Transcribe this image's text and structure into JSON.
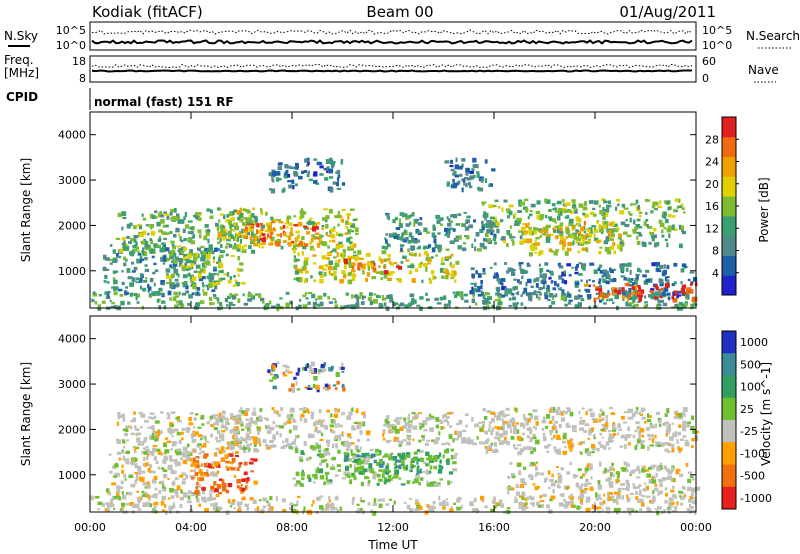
{
  "header": {
    "site": "Kodiak (fitACF)",
    "beam": "Beam 00",
    "date": "01/Aug/2011"
  },
  "summary": {
    "nsky_label": "N.Sky",
    "nsearch_label": "N.Search",
    "freq_label_1": "Freq.",
    "freq_label_2": "[MHz]",
    "nave_label": "Nave",
    "cpid_label": "CPID",
    "cpid_text": "normal (fast) 151 RF",
    "noise_ticks_left": [
      "10^5",
      "10^0"
    ],
    "noise_ticks_right": [
      "10^5",
      "10^0"
    ],
    "freq_ticks": [
      "18",
      "8"
    ],
    "nave_ticks": [
      "60",
      "0"
    ]
  },
  "colors": {
    "power_scale": [
      "#2222cc",
      "#1f5faa",
      "#4f8a8a",
      "#3aa070",
      "#7dbb30",
      "#e0d000",
      "#f0a000",
      "#f06a10",
      "#e02020"
    ],
    "velocity_scale": [
      "#2030c0",
      "#3d8a9a",
      "#2fa060",
      "#6ec030",
      "#c0c0bc",
      "#ffa000",
      "#f07010",
      "#e82020"
    ]
  },
  "chart_data": [
    {
      "type": "heatmap",
      "panel": "power",
      "ylabel": "Slant Range [km]",
      "xlabel": "Time UT",
      "x_ticks": [
        "00:00",
        "04:00",
        "08:00",
        "12:00",
        "16:00",
        "20:00",
        "00:00"
      ],
      "x_range_hours": [
        0,
        24
      ],
      "y_ticks": [
        1000,
        2000,
        3000,
        4000
      ],
      "y_range_km": [
        180,
        4500
      ],
      "colorbar": {
        "label": "Power [dB]",
        "ticks": [
          4,
          8,
          12,
          16,
          20,
          24,
          28
        ],
        "range": [
          0,
          32
        ]
      },
      "regions": [
        {
          "t0": 0.0,
          "t1": 24.0,
          "r0": 200,
          "r1": 550,
          "level": 12
        },
        {
          "t0": 0.5,
          "t1": 5.0,
          "r0": 500,
          "r1": 1600,
          "level": 10
        },
        {
          "t0": 1.0,
          "t1": 6.5,
          "r0": 1400,
          "r1": 2400,
          "level": 14
        },
        {
          "t0": 3.0,
          "t1": 6.0,
          "r0": 700,
          "r1": 1400,
          "level": 16
        },
        {
          "t0": 5.0,
          "t1": 10.5,
          "r0": 1500,
          "r1": 2400,
          "level": 18
        },
        {
          "t0": 6.0,
          "t1": 9.0,
          "r0": 1600,
          "r1": 2100,
          "level": 26
        },
        {
          "t0": 8.0,
          "t1": 14.5,
          "r0": 800,
          "r1": 1500,
          "level": 18
        },
        {
          "t0": 10.0,
          "t1": 12.5,
          "r0": 1000,
          "r1": 1300,
          "level": 26
        },
        {
          "t0": 7.0,
          "t1": 10.0,
          "r0": 2800,
          "r1": 3500,
          "level": 8
        },
        {
          "t0": 14.0,
          "t1": 16.0,
          "r0": 2800,
          "r1": 3500,
          "level": 8
        },
        {
          "t0": 11.5,
          "t1": 16.0,
          "r0": 1500,
          "r1": 2300,
          "level": 10
        },
        {
          "t0": 15.5,
          "t1": 23.5,
          "r0": 1600,
          "r1": 2600,
          "level": 14
        },
        {
          "t0": 17.0,
          "t1": 21.0,
          "r0": 1400,
          "r1": 2100,
          "level": 20
        },
        {
          "t0": 15.0,
          "t1": 24.0,
          "r0": 450,
          "r1": 1200,
          "level": 8
        },
        {
          "t0": 19.5,
          "t1": 24.0,
          "r0": 400,
          "r1": 750,
          "level": 28
        }
      ]
    },
    {
      "type": "heatmap",
      "panel": "velocity",
      "ylabel": "Slant Range [km]",
      "xlabel": "Time UT",
      "x_ticks": [
        "00:00",
        "04:00",
        "08:00",
        "12:00",
        "16:00",
        "20:00",
        "00:00"
      ],
      "x_range_hours": [
        0,
        24
      ],
      "y_ticks": [
        1000,
        2000,
        3000,
        4000
      ],
      "y_range_km": [
        180,
        4500
      ],
      "colorbar": {
        "label": "Velocity [m s^-1]",
        "ticks": [
          "1000",
          "500",
          "100",
          "25",
          "-25",
          "-100",
          "-500",
          "-1000"
        ]
      },
      "regions": [
        {
          "t0": 0.0,
          "t1": 24.0,
          "r0": 200,
          "r1": 550,
          "vclass": "near-zero"
        },
        {
          "t0": 0.5,
          "t1": 5.0,
          "r0": 500,
          "r1": 1600,
          "vclass": "near-zero"
        },
        {
          "t0": 1.0,
          "t1": 7.0,
          "r0": 1500,
          "r1": 2400,
          "vclass": "near-zero"
        },
        {
          "t0": 5.0,
          "t1": 11.0,
          "r0": 1600,
          "r1": 2500,
          "vclass": "near-zero"
        },
        {
          "t0": 4.0,
          "t1": 6.5,
          "r0": 600,
          "r1": 1500,
          "vclass": "negative-500"
        },
        {
          "t0": 8.0,
          "t1": 14.5,
          "r0": 800,
          "r1": 1600,
          "vclass": "positive-100"
        },
        {
          "t0": 10.0,
          "t1": 13.0,
          "r0": 1000,
          "r1": 1500,
          "vclass": "positive-500"
        },
        {
          "t0": 11.5,
          "t1": 16.5,
          "r0": 1700,
          "r1": 2400,
          "vclass": "near-zero"
        },
        {
          "t0": 15.5,
          "t1": 24.0,
          "r0": 1500,
          "r1": 2500,
          "vclass": "near-zero"
        },
        {
          "t0": 16.5,
          "t1": 24.0,
          "r0": 500,
          "r1": 1300,
          "vclass": "near-zero"
        },
        {
          "t0": 7.0,
          "t1": 10.0,
          "r0": 2900,
          "r1": 3500,
          "vclass": "mixed"
        }
      ]
    }
  ]
}
